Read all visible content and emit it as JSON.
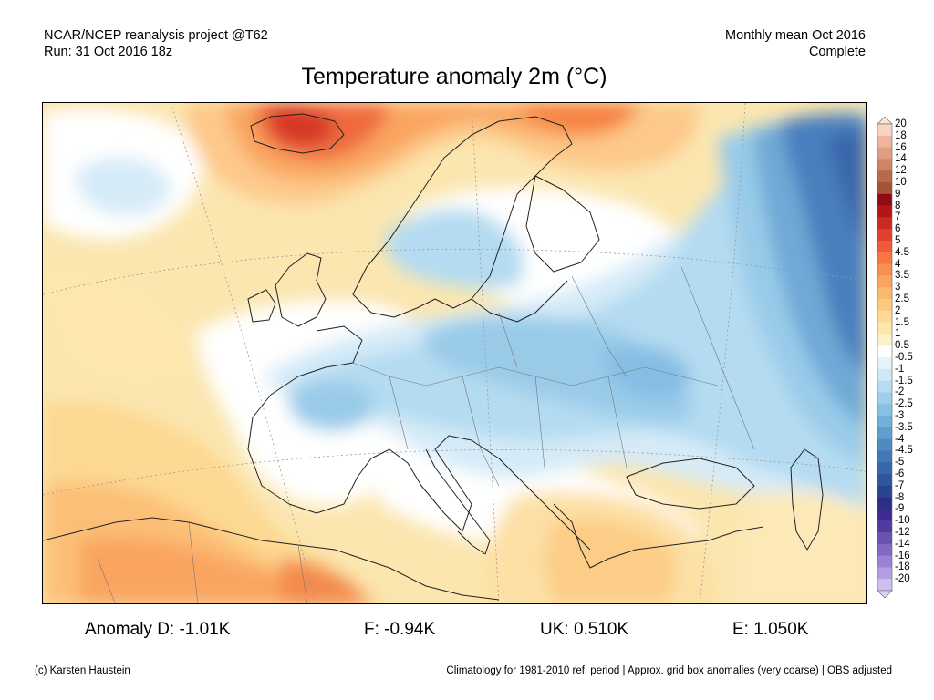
{
  "header": {
    "left_line1": "NCAR/NCEP reanalysis project @T62",
    "left_line2": "Run: 31 Oct 2016 18z",
    "right_line1": "Monthly mean Oct 2016",
    "right_line2": "Complete"
  },
  "title": "Temperature anomaly 2m (°C)",
  "colorbar": {
    "labels": [
      "20",
      "18",
      "16",
      "14",
      "12",
      "10",
      "9",
      "8",
      "7",
      "6",
      "5",
      "4.5",
      "4",
      "3.5",
      "3",
      "2.5",
      "2",
      "1.5",
      "1",
      "0.5",
      "-0.5",
      "-1",
      "-1.5",
      "-2",
      "-2.5",
      "-3",
      "-3.5",
      "-4",
      "-4.5",
      "-5",
      "-6",
      "-7",
      "-8",
      "-9",
      "-10",
      "-12",
      "-14",
      "-16",
      "-18",
      "-20"
    ],
    "colors": [
      "#f7d4c4",
      "#eeb59c",
      "#e09d81",
      "#cf8468",
      "#b9694e",
      "#a35439",
      "#8f0c12",
      "#b3151b",
      "#cc2a20",
      "#e0402c",
      "#ef5a38",
      "#f57745",
      "#f78f52",
      "#f9a560",
      "#fbb86e",
      "#fcc97e",
      "#fdd992",
      "#fde7ae",
      "#fdf1cc",
      "#ffffff",
      "#e6f3fb",
      "#cfe8f7",
      "#b6dcf1",
      "#9ecfeb",
      "#86c0e3",
      "#72b0da",
      "#5f9ecf",
      "#4e8bc3",
      "#4278b7",
      "#3867aa",
      "#2f559c",
      "#28448e",
      "#2b2f86",
      "#3d2b91",
      "#523a9e",
      "#6a52b1",
      "#8268c3",
      "#9a82d4",
      "#b39ee3",
      "#cfbff0"
    ],
    "triangle_top": "#fde3d3",
    "triangle_bottom": "#ddd2f5"
  },
  "stats": {
    "d": "Anomaly D: -1.01K",
    "f": "F: -0.94K",
    "uk": "UK: 0.510K",
    "e": "E: 1.050K"
  },
  "footer": {
    "left": "(c) Karsten Haustein",
    "right": "Climatology for 1981-2010 ref. period | Approx. grid box anomalies (very coarse) | OBS adjusted"
  }
}
